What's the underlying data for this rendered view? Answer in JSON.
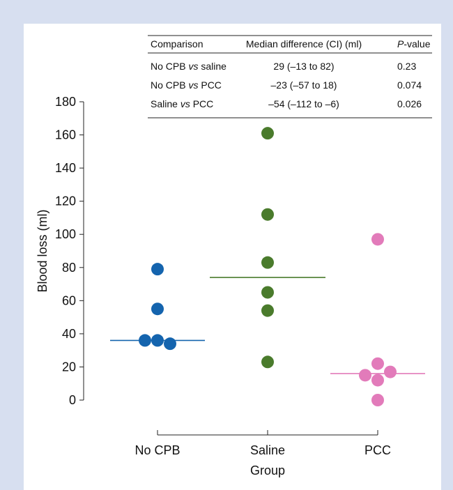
{
  "colors": {
    "background": "#d7dff0",
    "panel": "#ffffff",
    "no_cpb": "#1464ae",
    "saline": "#4a7b2c",
    "pcc": "#e27bba"
  },
  "table": {
    "headers": [
      {
        "text": "Comparison",
        "italic_prefix": ""
      },
      {
        "text": "Median difference (CI) (ml)",
        "italic_prefix": ""
      },
      {
        "text": "-value",
        "italic_prefix": "P"
      }
    ],
    "rows": [
      {
        "a": "No CPB",
        "vs": "vs",
        "b": "saline",
        "diff": "29 (–13 to 82)",
        "p": "0.23"
      },
      {
        "a": "No CPB",
        "vs": "vs",
        "b": "PCC",
        "diff": "–23 (–57 to 18)",
        "p": "0.074"
      },
      {
        "a": "Saline",
        "vs": "vs",
        "b": "PCC",
        "diff": "–54 (–112 to –6)",
        "p": "0.026"
      }
    ]
  },
  "chart_data": {
    "type": "scatter",
    "xlabel": "Group",
    "ylabel": "Blood loss (ml)",
    "ylim": [
      0,
      180
    ],
    "yticks": [
      0,
      20,
      40,
      60,
      80,
      100,
      120,
      140,
      160,
      180
    ],
    "categories": [
      "No CPB",
      "Saline",
      "PCC"
    ],
    "series": [
      {
        "name": "No CPB",
        "color": "#1464ae",
        "median": 36,
        "points": [
          {
            "x": -0.1,
            "y": 36
          },
          {
            "x": 0.0,
            "y": 36
          },
          {
            "x": 0.1,
            "y": 34
          },
          {
            "x": 0.0,
            "y": 55
          },
          {
            "x": 0.0,
            "y": 79
          }
        ]
      },
      {
        "name": "Saline",
        "color": "#4a7b2c",
        "median": 74,
        "points": [
          {
            "x": 0.0,
            "y": 23
          },
          {
            "x": 0.0,
            "y": 54
          },
          {
            "x": 0.0,
            "y": 65
          },
          {
            "x": 0.0,
            "y": 83
          },
          {
            "x": 0.0,
            "y": 112
          },
          {
            "x": 0.0,
            "y": 161
          }
        ]
      },
      {
        "name": "PCC",
        "color": "#e27bba",
        "median": 16,
        "points": [
          {
            "x": 0.0,
            "y": 0
          },
          {
            "x": -0.1,
            "y": 15
          },
          {
            "x": 0.0,
            "y": 12
          },
          {
            "x": 0.1,
            "y": 17
          },
          {
            "x": 0.0,
            "y": 22
          },
          {
            "x": 0.0,
            "y": 97
          }
        ]
      }
    ]
  }
}
